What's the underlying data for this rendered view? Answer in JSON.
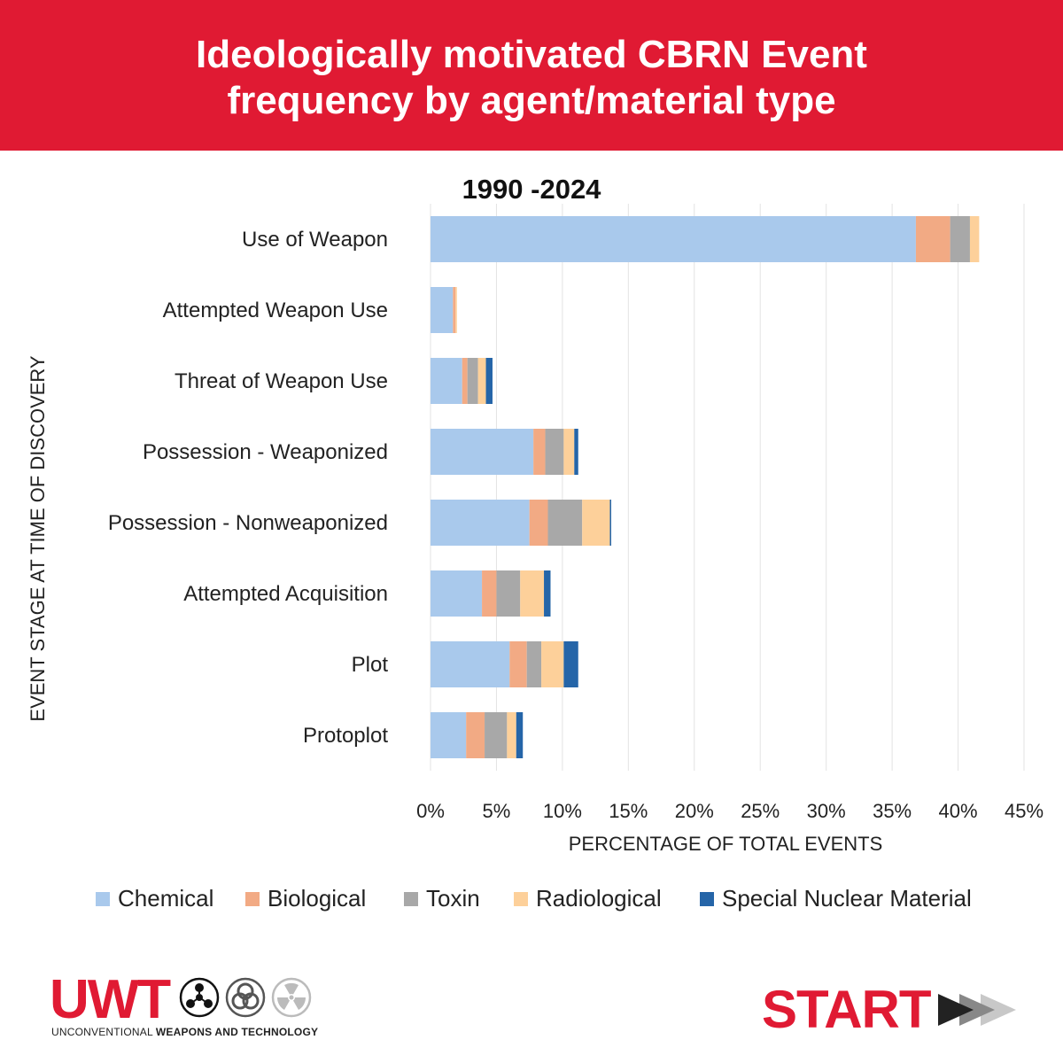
{
  "header": {
    "title_line1": "Ideologically motivated CBRN Event",
    "title_line2": "frequency by agent/material type"
  },
  "chart_data": {
    "type": "bar",
    "orientation": "horizontal",
    "stacked": true,
    "subtitle": "1990 -2024",
    "xlabel": "PERCENTAGE OF TOTAL EVENTS",
    "ylabel": "EVENT STAGE AT TIME OF DISCOVERY",
    "xlim": [
      0,
      45
    ],
    "xticks": [
      "0%",
      "5%",
      "10%",
      "15%",
      "20%",
      "25%",
      "30%",
      "35%",
      "40%",
      "45%"
    ],
    "grid": true,
    "legend_position": "bottom",
    "categories": [
      "Use of Weapon",
      "Attempted Weapon Use",
      "Threat of Weapon Use",
      "Possession - Weaponized",
      "Possession - Nonweaponized",
      "Attempted Acquisition",
      "Plot",
      "Protoplot"
    ],
    "series": [
      {
        "name": "Chemical",
        "color": "#a9c9ec",
        "values": [
          36.8,
          1.7,
          2.4,
          7.8,
          7.5,
          3.9,
          6.0,
          2.7
        ]
      },
      {
        "name": "Biological",
        "color": "#f2aa84",
        "values": [
          2.6,
          0.2,
          0.4,
          0.9,
          1.4,
          1.1,
          1.3,
          1.4
        ]
      },
      {
        "name": "Toxin",
        "color": "#a8a8a8",
        "values": [
          1.5,
          0.0,
          0.8,
          1.4,
          2.6,
          1.8,
          1.1,
          1.7
        ]
      },
      {
        "name": "Radiological",
        "color": "#fdd09a",
        "values": [
          0.7,
          0.1,
          0.6,
          0.8,
          2.1,
          1.8,
          1.7,
          0.7
        ]
      },
      {
        "name": "Special Nuclear Material",
        "color": "#2565a8",
        "values": [
          0.0,
          0.0,
          0.5,
          0.3,
          0.1,
          0.5,
          1.1,
          0.5
        ]
      }
    ]
  },
  "footer": {
    "uwt_logo": "UWT",
    "uwt_tagline_plain": "UNCONVENTIONAL ",
    "uwt_tagline_bold": "WEAPONS AND TECHNOLOGY",
    "uwt_icons": [
      "chemical-hazard-icon",
      "biohazard-icon",
      "radiation-icon"
    ],
    "start_logo": "START",
    "start_icon": "fast-forward-arrows-icon"
  }
}
